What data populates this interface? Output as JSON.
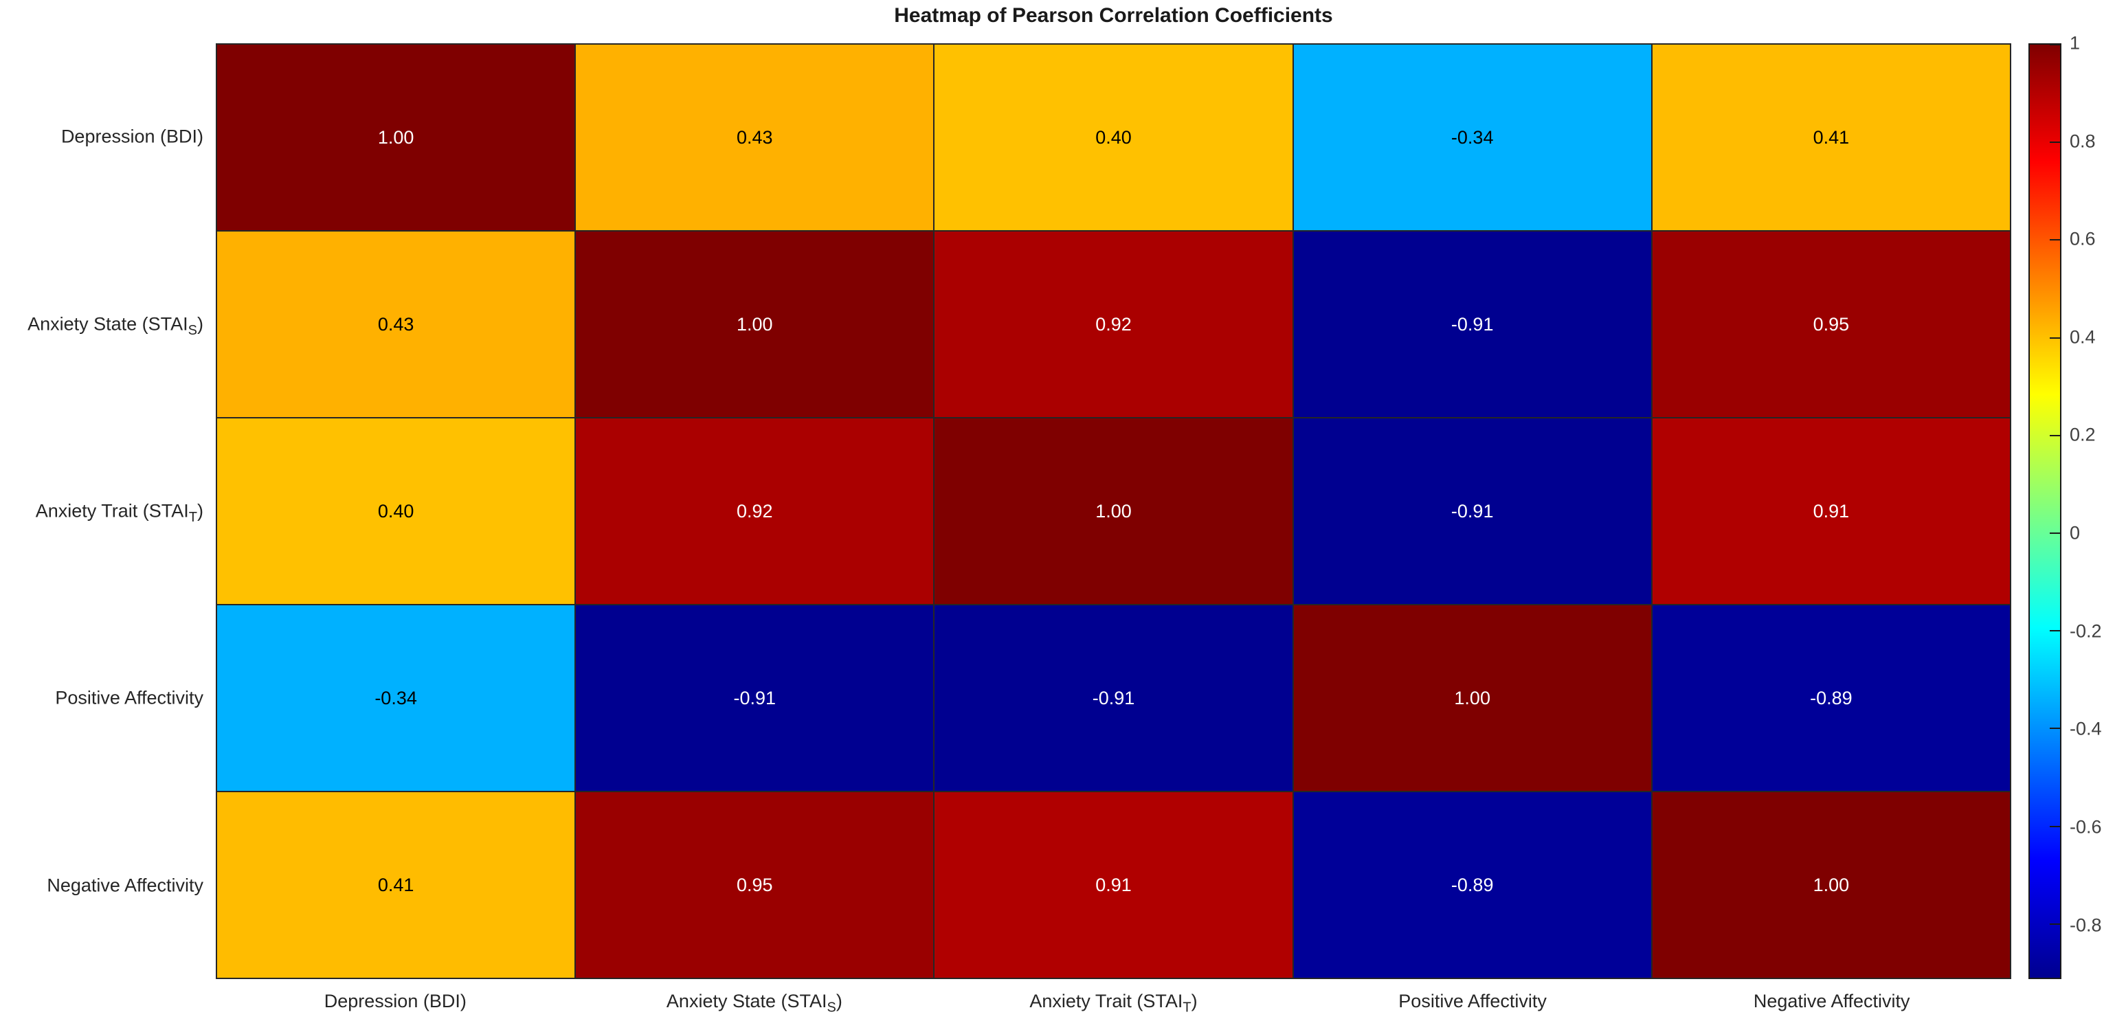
{
  "title": "Heatmap of Pearson Correlation Coefficients",
  "chart_data": {
    "type": "heatmap",
    "title": "Heatmap of Pearson Correlation Coefficients",
    "colormap": "jet",
    "color_axis_min": -0.91,
    "color_axis_max": 1,
    "grid_color": "#262626",
    "axis_text_color": "#262626",
    "categories": [
      "Depression (BDI)",
      "Anxiety State (STAI_S)",
      "Anxiety Trait (STAI_T)",
      "Positive Affectivity",
      "Negative Affectivity"
    ],
    "axis_label_segments": [
      [
        {
          "t": "Depression (BDI)"
        }
      ],
      [
        {
          "t": "Anxiety State (STAI"
        },
        {
          "t": "S",
          "sub": true
        },
        {
          "t": ")"
        }
      ],
      [
        {
          "t": "Anxiety Trait (STAI"
        },
        {
          "t": "T",
          "sub": true
        },
        {
          "t": ")"
        }
      ],
      [
        {
          "t": "Positive Affectivity"
        }
      ],
      [
        {
          "t": "Negative Affectivity"
        }
      ]
    ],
    "matrix": [
      [
        1.0,
        0.43,
        0.4,
        -0.34,
        0.41
      ],
      [
        0.43,
        1.0,
        0.92,
        -0.91,
        0.95
      ],
      [
        0.4,
        0.92,
        1.0,
        -0.91,
        0.91
      ],
      [
        -0.34,
        -0.91,
        -0.91,
        1.0,
        -0.89
      ],
      [
        0.41,
        0.95,
        0.91,
        -0.89,
        1.0
      ]
    ],
    "cell_colors": [
      [
        "#7f0000",
        "#ffb100",
        "#ffc100",
        "#00b1ff",
        "#ffbc00"
      ],
      [
        "#ffb100",
        "#7f0000",
        "#aa0000",
        "#000090",
        "#9a0000"
      ],
      [
        "#ffc100",
        "#aa0000",
        "#7f0000",
        "#000090",
        "#b00000"
      ],
      [
        "#00b1ff",
        "#000090",
        "#000090",
        "#7f0000",
        "#000098"
      ],
      [
        "#ffbc00",
        "#9a0000",
        "#b00000",
        "#000098",
        "#7f0000"
      ]
    ],
    "cell_text_colors": [
      [
        "#ffffff",
        "#000000",
        "#000000",
        "#000000",
        "#000000"
      ],
      [
        "#000000",
        "#ffffff",
        "#ffffff",
        "#ffffff",
        "#ffffff"
      ],
      [
        "#000000",
        "#ffffff",
        "#ffffff",
        "#ffffff",
        "#ffffff"
      ],
      [
        "#000000",
        "#ffffff",
        "#ffffff",
        "#ffffff",
        "#ffffff"
      ],
      [
        "#000000",
        "#ffffff",
        "#ffffff",
        "#ffffff",
        "#ffffff"
      ]
    ],
    "colorbar": {
      "position": "right",
      "ticks": [
        {
          "label": "1",
          "value": 1
        },
        {
          "label": "0.8",
          "value": 0.8
        },
        {
          "label": "0.6",
          "value": 0.6
        },
        {
          "label": "0.4",
          "value": 0.4
        },
        {
          "label": "0.2",
          "value": 0.2
        },
        {
          "label": "0",
          "value": 0
        },
        {
          "label": "-0.2",
          "value": -0.2
        },
        {
          "label": "-0.4",
          "value": -0.4
        },
        {
          "label": "-0.6",
          "value": -0.6
        },
        {
          "label": "-0.8",
          "value": -0.8
        }
      ],
      "gradient_stops": [
        {
          "color": "#000090",
          "pos": 0
        },
        {
          "color": "#0000ff",
          "pos": 12.5
        },
        {
          "color": "#00ffff",
          "pos": 37.5
        },
        {
          "color": "#ffff00",
          "pos": 62.5
        },
        {
          "color": "#ff0000",
          "pos": 87.5
        },
        {
          "color": "#800000",
          "pos": 100
        }
      ]
    }
  }
}
